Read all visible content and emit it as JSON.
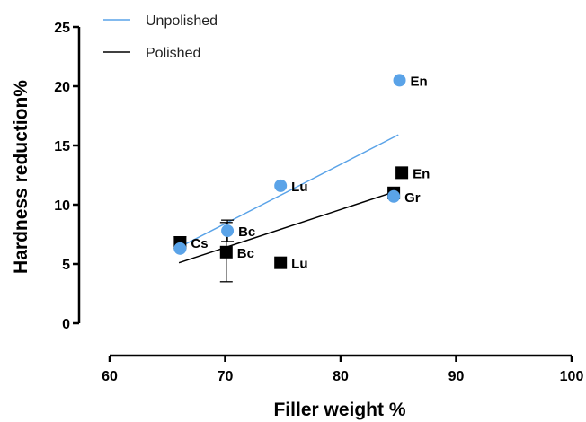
{
  "chart_data": {
    "type": "scatter",
    "xlabel": "Filler weight %",
    "ylabel": "Hardness reduction%",
    "xlim": [
      60,
      100
    ],
    "ylim": [
      0,
      25
    ],
    "xticks": [
      60,
      70,
      80,
      90,
      100
    ],
    "yticks": [
      0,
      5,
      10,
      15,
      20,
      25
    ],
    "grid": false,
    "legend_position": "top-left",
    "series": [
      {
        "name": "Unpolished",
        "marker": "circle",
        "color": "#5aa3e8",
        "line_color": "#5aa3e8",
        "points": [
          {
            "x": 66.1,
            "y": 6.3,
            "label": ""
          },
          {
            "x": 70.2,
            "y": 7.8,
            "label": "Bc",
            "err": 0.9
          },
          {
            "x": 74.8,
            "y": 11.6,
            "label": "Lu"
          },
          {
            "x": 84.6,
            "y": 10.7,
            "label": "Gr"
          },
          {
            "x": 85.1,
            "y": 20.5,
            "label": "En"
          }
        ],
        "trendline": {
          "x": [
            66,
            85
          ],
          "y": [
            6.4,
            15.9
          ]
        }
      },
      {
        "name": "Polished",
        "marker": "square",
        "color": "#000000",
        "line_color": "#000000",
        "points": [
          {
            "x": 66.1,
            "y": 6.8,
            "label": "Cs",
            "err": 0.5
          },
          {
            "x": 70.1,
            "y": 6.0,
            "label": "Bc",
            "err": 2.5
          },
          {
            "x": 74.8,
            "y": 5.1,
            "label": "Lu"
          },
          {
            "x": 84.6,
            "y": 11.0,
            "label": ""
          },
          {
            "x": 85.3,
            "y": 12.7,
            "label": "En"
          }
        ],
        "trendline": {
          "x": [
            66,
            85
          ],
          "y": [
            5.1,
            11.2
          ]
        }
      }
    ]
  }
}
